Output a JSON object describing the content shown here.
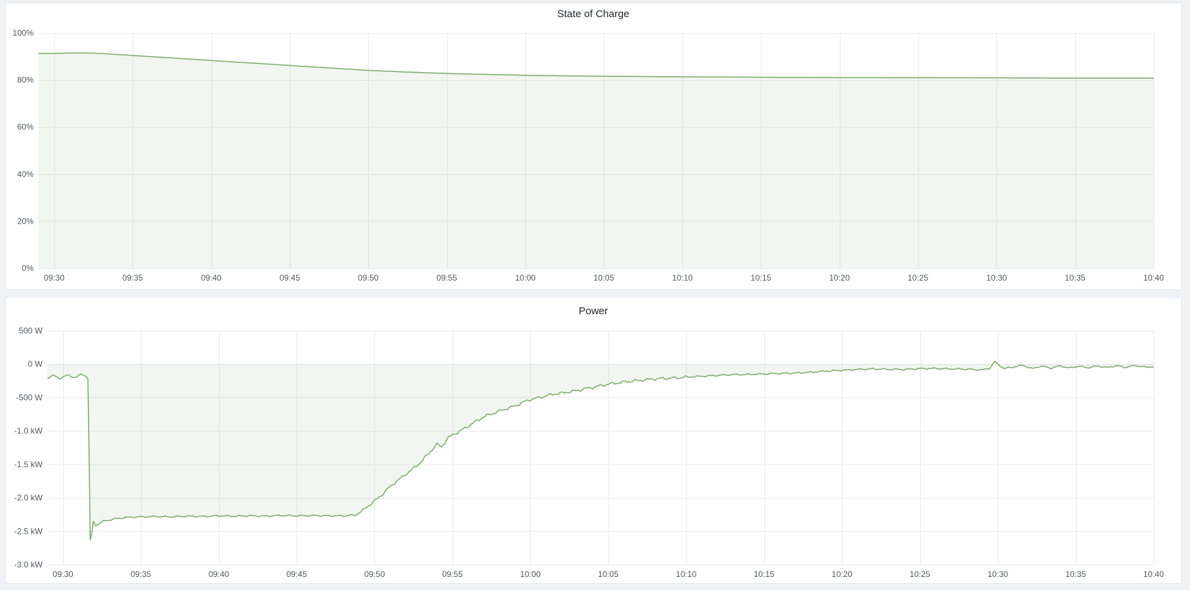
{
  "page": {
    "background_color": "#f0f2f5",
    "panel_background": "#ffffff",
    "panel_border_color": "#e2e6eb",
    "gridline_color": "#e7eaec",
    "axis_text_color": "#54575e"
  },
  "chart_data": [
    {
      "type": "area",
      "title": "State of Charge",
      "legend": "none",
      "grid": true,
      "line_color": "#7aab69",
      "fill_color": "rgba(122,171,105,0.10)",
      "x_range_minutes": [
        -1,
        70
      ],
      "x_axis": {
        "unit": "time",
        "ticks": [
          {
            "t": 0,
            "label": "09:30"
          },
          {
            "t": 5,
            "label": "09:35"
          },
          {
            "t": 10,
            "label": "09:40"
          },
          {
            "t": 15,
            "label": "09:45"
          },
          {
            "t": 20,
            "label": "09:50"
          },
          {
            "t": 25,
            "label": "09:55"
          },
          {
            "t": 30,
            "label": "10:00"
          },
          {
            "t": 35,
            "label": "10:05"
          },
          {
            "t": 40,
            "label": "10:10"
          },
          {
            "t": 45,
            "label": "10:15"
          },
          {
            "t": 50,
            "label": "10:20"
          },
          {
            "t": 55,
            "label": "10:25"
          },
          {
            "t": 60,
            "label": "10:30"
          },
          {
            "t": 65,
            "label": "10:35"
          },
          {
            "t": 70,
            "label": "10:40"
          }
        ]
      },
      "y_axis": {
        "unit": "percent",
        "min": 0,
        "max": 100,
        "ticks": [
          {
            "value": 100,
            "label": "100%"
          },
          {
            "value": 80,
            "label": "80%"
          },
          {
            "value": 60,
            "label": "60%"
          },
          {
            "value": 40,
            "label": "40%"
          },
          {
            "value": 20,
            "label": "20%"
          },
          {
            "value": 0,
            "label": "0%"
          }
        ]
      },
      "points": [
        [
          -1,
          91.3
        ],
        [
          0,
          91.35
        ],
        [
          0.7,
          91.4
        ],
        [
          1.4,
          91.5
        ],
        [
          2,
          91.45
        ],
        [
          2.6,
          91.4
        ],
        [
          4,
          90.85
        ],
        [
          6,
          90.0
        ],
        [
          8,
          89.15
        ],
        [
          10,
          88.3
        ],
        [
          12,
          87.45
        ],
        [
          14,
          86.6
        ],
        [
          16,
          85.75
        ],
        [
          18,
          84.9
        ],
        [
          20,
          84.1
        ],
        [
          21,
          83.8
        ],
        [
          22,
          83.5
        ],
        [
          23,
          83.25
        ],
        [
          24,
          83.0
        ],
        [
          25,
          82.8
        ],
        [
          26,
          82.6
        ],
        [
          27,
          82.45
        ],
        [
          28,
          82.3
        ],
        [
          29,
          82.15
        ],
        [
          30,
          82.0
        ],
        [
          31,
          81.9
        ],
        [
          32,
          81.8
        ],
        [
          33,
          81.72
        ],
        [
          34,
          81.65
        ],
        [
          36,
          81.55
        ],
        [
          38,
          81.45
        ],
        [
          40,
          81.35
        ],
        [
          42,
          81.28
        ],
        [
          44,
          81.22
        ],
        [
          46,
          81.15
        ],
        [
          48,
          81.1
        ],
        [
          50,
          81.05
        ],
        [
          53,
          81.0
        ],
        [
          56,
          80.95
        ],
        [
          60,
          80.9
        ],
        [
          64,
          80.85
        ],
        [
          70,
          80.8
        ]
      ],
      "noise": []
    },
    {
      "type": "area",
      "title": "Power",
      "legend": "none",
      "grid": true,
      "line_color": "#7aab69",
      "fill_color": "rgba(122,171,105,0.10)",
      "x_range_minutes": [
        -1,
        70
      ],
      "x_axis": {
        "unit": "time",
        "ticks": [
          {
            "t": 0,
            "label": "09:30"
          },
          {
            "t": 5,
            "label": "09:35"
          },
          {
            "t": 10,
            "label": "09:40"
          },
          {
            "t": 15,
            "label": "09:45"
          },
          {
            "t": 20,
            "label": "09:50"
          },
          {
            "t": 25,
            "label": "09:55"
          },
          {
            "t": 30,
            "label": "10:00"
          },
          {
            "t": 35,
            "label": "10:05"
          },
          {
            "t": 40,
            "label": "10:10"
          },
          {
            "t": 45,
            "label": "10:15"
          },
          {
            "t": 50,
            "label": "10:20"
          },
          {
            "t": 55,
            "label": "10:25"
          },
          {
            "t": 60,
            "label": "10:30"
          },
          {
            "t": 65,
            "label": "10:35"
          },
          {
            "t": 70,
            "label": "10:40"
          }
        ]
      },
      "y_axis": {
        "unit": "watt",
        "min": -3000,
        "max": 500,
        "ticks": [
          {
            "value": 500,
            "label": "500 W"
          },
          {
            "value": 0,
            "label": "0 W"
          },
          {
            "value": -500,
            "label": "-500 W"
          },
          {
            "value": -1000,
            "label": "-1.0 kW"
          },
          {
            "value": -1500,
            "label": "-1.5 kW"
          },
          {
            "value": -2000,
            "label": "-2.0 kW"
          },
          {
            "value": -2500,
            "label": "-2.5 kW"
          },
          {
            "value": -3000,
            "label": "-3.0 kW"
          }
        ]
      },
      "points": [
        [
          -1,
          -210
        ],
        [
          -0.6,
          -170
        ],
        [
          -0.2,
          -215
        ],
        [
          0.3,
          -165
        ],
        [
          0.8,
          -205
        ],
        [
          1.2,
          -150
        ],
        [
          1.45,
          -175
        ],
        [
          1.6,
          -220
        ],
        [
          1.68,
          -1400
        ],
        [
          1.75,
          -2630
        ],
        [
          1.85,
          -2540
        ],
        [
          1.95,
          -2350
        ],
        [
          2.1,
          -2420
        ],
        [
          2.3,
          -2390
        ],
        [
          2.6,
          -2350
        ],
        [
          3,
          -2330
        ],
        [
          3.5,
          -2310
        ],
        [
          4,
          -2295
        ],
        [
          5,
          -2285
        ],
        [
          6,
          -2280
        ],
        [
          7,
          -2285
        ],
        [
          8,
          -2275
        ],
        [
          9,
          -2280
        ],
        [
          10,
          -2270
        ],
        [
          11,
          -2275
        ],
        [
          12,
          -2270
        ],
        [
          13,
          -2275
        ],
        [
          14,
          -2265
        ],
        [
          15,
          -2270
        ],
        [
          16,
          -2265
        ],
        [
          17,
          -2270
        ],
        [
          18,
          -2270
        ],
        [
          18.8,
          -2260
        ],
        [
          19.2,
          -2200
        ],
        [
          19.6,
          -2120
        ],
        [
          20,
          -2050
        ],
        [
          20.5,
          -1950
        ],
        [
          21,
          -1830
        ],
        [
          21.5,
          -1740
        ],
        [
          22,
          -1650
        ],
        [
          22.5,
          -1560
        ],
        [
          23,
          -1460
        ],
        [
          23.5,
          -1330
        ],
        [
          24,
          -1200
        ],
        [
          24.3,
          -1240
        ],
        [
          24.7,
          -1110
        ],
        [
          25,
          -1060
        ],
        [
          25.5,
          -1000
        ],
        [
          26,
          -930
        ],
        [
          26.5,
          -860
        ],
        [
          27,
          -790
        ],
        [
          27.5,
          -745
        ],
        [
          28,
          -705
        ],
        [
          28.5,
          -665
        ],
        [
          29,
          -630
        ],
        [
          29.5,
          -575
        ],
        [
          30,
          -530
        ],
        [
          30.5,
          -505
        ],
        [
          31,
          -475
        ],
        [
          31.5,
          -450
        ],
        [
          32,
          -435
        ],
        [
          32.5,
          -415
        ],
        [
          33,
          -395
        ],
        [
          33.5,
          -370
        ],
        [
          34,
          -350
        ],
        [
          34.5,
          -325
        ],
        [
          35,
          -300
        ],
        [
          35.5,
          -285
        ],
        [
          36,
          -268
        ],
        [
          36.5,
          -255
        ],
        [
          37,
          -245
        ],
        [
          37.5,
          -232
        ],
        [
          38,
          -222
        ],
        [
          38.5,
          -215
        ],
        [
          39,
          -210
        ],
        [
          39.5,
          -205
        ],
        [
          40,
          -195
        ],
        [
          41,
          -182
        ],
        [
          42,
          -170
        ],
        [
          43,
          -158
        ],
        [
          44,
          -155
        ],
        [
          45,
          -148
        ],
        [
          46,
          -140
        ],
        [
          47,
          -135
        ],
        [
          48,
          -122
        ],
        [
          49,
          -105
        ],
        [
          50,
          -92
        ],
        [
          51,
          -80
        ],
        [
          52,
          -72
        ],
        [
          53,
          -78
        ],
        [
          54,
          -80
        ],
        [
          55,
          -68
        ],
        [
          56,
          -65
        ],
        [
          57,
          -72
        ],
        [
          58,
          -75
        ],
        [
          59,
          -88
        ],
        [
          59.5,
          -60
        ],
        [
          59.8,
          40
        ],
        [
          60.1,
          -20
        ],
        [
          60.4,
          -65
        ],
        [
          61,
          -45
        ],
        [
          61.6,
          -18
        ],
        [
          62.2,
          -68
        ],
        [
          62.8,
          -30
        ],
        [
          63.4,
          -60
        ],
        [
          64,
          -28
        ],
        [
          64.6,
          -58
        ],
        [
          65.2,
          -32
        ],
        [
          65.8,
          -55
        ],
        [
          66.4,
          -28
        ],
        [
          67,
          -52
        ],
        [
          67.6,
          -25
        ],
        [
          68.2,
          -48
        ],
        [
          68.8,
          -22
        ],
        [
          69.4,
          -45
        ],
        [
          70,
          -40
        ]
      ],
      "noise": [
        {
          "from": -1,
          "to": 1.6,
          "amplitude": 14
        },
        {
          "from": 2.3,
          "to": 18.8,
          "amplitude": 14
        },
        {
          "from": 19.2,
          "to": 40,
          "amplitude": 25
        },
        {
          "from": 40,
          "to": 59,
          "amplitude": 14
        },
        {
          "from": 59,
          "to": 70,
          "amplitude": 12
        }
      ]
    }
  ]
}
